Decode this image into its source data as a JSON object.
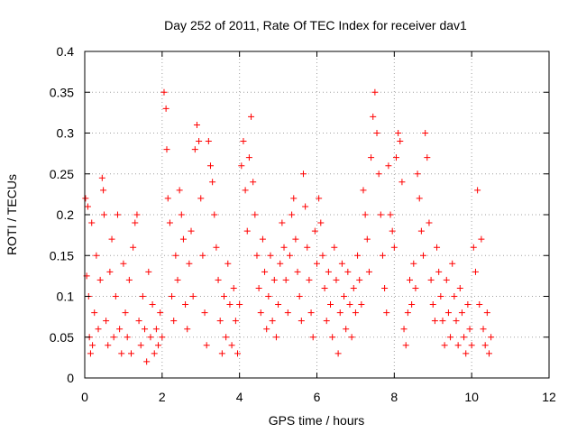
{
  "chart_data": {
    "type": "scatter",
    "title": "Day 252 of 2011, Rate Of TEC Index for receiver dav1",
    "xlabel": "GPS time / hours",
    "ylabel": "ROTI / TECUs",
    "xlim": [
      0,
      12
    ],
    "ylim": [
      0,
      0.4
    ],
    "xticks": [
      "0",
      "2",
      "4",
      "6",
      "8",
      "10",
      "12"
    ],
    "yticks": [
      "0",
      "0.05",
      "0.1",
      "0.15",
      "0.2",
      "0.25",
      "0.3",
      "0.35",
      "0.4"
    ],
    "grid": true,
    "marker": "+",
    "color": "#ff0000",
    "points": [
      [
        0.02,
        0.22
      ],
      [
        0.05,
        0.125
      ],
      [
        0.08,
        0.21
      ],
      [
        0.1,
        0.1
      ],
      [
        0.12,
        0.05
      ],
      [
        0.15,
        0.03
      ],
      [
        0.18,
        0.19
      ],
      [
        0.2,
        0.04
      ],
      [
        0.25,
        0.08
      ],
      [
        0.3,
        0.15
      ],
      [
        0.35,
        0.06
      ],
      [
        0.4,
        0.12
      ],
      [
        0.45,
        0.245
      ],
      [
        0.48,
        0.23
      ],
      [
        0.5,
        0.2
      ],
      [
        0.55,
        0.07
      ],
      [
        0.6,
        0.04
      ],
      [
        0.65,
        0.13
      ],
      [
        0.7,
        0.17
      ],
      [
        0.75,
        0.05
      ],
      [
        0.8,
        0.1
      ],
      [
        0.85,
        0.2
      ],
      [
        0.9,
        0.06
      ],
      [
        0.95,
        0.03
      ],
      [
        1.0,
        0.14
      ],
      [
        1.05,
        0.08
      ],
      [
        1.1,
        0.05
      ],
      [
        1.15,
        0.12
      ],
      [
        1.2,
        0.03
      ],
      [
        1.25,
        0.16
      ],
      [
        1.3,
        0.19
      ],
      [
        1.35,
        0.2
      ],
      [
        1.4,
        0.07
      ],
      [
        1.45,
        0.04
      ],
      [
        1.5,
        0.1
      ],
      [
        1.55,
        0.06
      ],
      [
        1.6,
        0.02
      ],
      [
        1.65,
        0.13
      ],
      [
        1.7,
        0.05
      ],
      [
        1.75,
        0.09
      ],
      [
        1.8,
        0.03
      ],
      [
        1.85,
        0.06
      ],
      [
        1.9,
        0.04
      ],
      [
        1.95,
        0.08
      ],
      [
        2.0,
        0.05
      ],
      [
        2.05,
        0.35
      ],
      [
        2.1,
        0.33
      ],
      [
        2.12,
        0.28
      ],
      [
        2.15,
        0.22
      ],
      [
        2.2,
        0.19
      ],
      [
        2.25,
        0.1
      ],
      [
        2.3,
        0.07
      ],
      [
        2.35,
        0.15
      ],
      [
        2.4,
        0.12
      ],
      [
        2.45,
        0.23
      ],
      [
        2.5,
        0.2
      ],
      [
        2.55,
        0.17
      ],
      [
        2.6,
        0.09
      ],
      [
        2.65,
        0.06
      ],
      [
        2.7,
        0.14
      ],
      [
        2.75,
        0.18
      ],
      [
        2.8,
        0.1
      ],
      [
        2.85,
        0.28
      ],
      [
        2.9,
        0.31
      ],
      [
        2.95,
        0.29
      ],
      [
        3.0,
        0.22
      ],
      [
        3.05,
        0.15
      ],
      [
        3.1,
        0.08
      ],
      [
        3.15,
        0.04
      ],
      [
        3.2,
        0.29
      ],
      [
        3.25,
        0.26
      ],
      [
        3.3,
        0.24
      ],
      [
        3.35,
        0.2
      ],
      [
        3.4,
        0.16
      ],
      [
        3.45,
        0.12
      ],
      [
        3.5,
        0.07
      ],
      [
        3.55,
        0.03
      ],
      [
        3.6,
        0.1
      ],
      [
        3.65,
        0.05
      ],
      [
        3.7,
        0.14
      ],
      [
        3.75,
        0.09
      ],
      [
        3.8,
        0.04
      ],
      [
        3.85,
        0.11
      ],
      [
        3.9,
        0.07
      ],
      [
        3.95,
        0.03
      ],
      [
        4.0,
        0.09
      ],
      [
        4.05,
        0.26
      ],
      [
        4.1,
        0.29
      ],
      [
        4.15,
        0.23
      ],
      [
        4.2,
        0.18
      ],
      [
        4.25,
        0.27
      ],
      [
        4.3,
        0.32
      ],
      [
        4.35,
        0.24
      ],
      [
        4.4,
        0.2
      ],
      [
        4.45,
        0.15
      ],
      [
        4.5,
        0.11
      ],
      [
        4.55,
        0.08
      ],
      [
        4.6,
        0.17
      ],
      [
        4.65,
        0.13
      ],
      [
        4.7,
        0.06
      ],
      [
        4.75,
        0.1
      ],
      [
        4.8,
        0.15
      ],
      [
        4.85,
        0.07
      ],
      [
        4.9,
        0.12
      ],
      [
        4.95,
        0.05
      ],
      [
        5.0,
        0.09
      ],
      [
        5.05,
        0.14
      ],
      [
        5.1,
        0.19
      ],
      [
        5.15,
        0.16
      ],
      [
        5.2,
        0.12
      ],
      [
        5.25,
        0.08
      ],
      [
        5.3,
        0.15
      ],
      [
        5.35,
        0.2
      ],
      [
        5.4,
        0.22
      ],
      [
        5.45,
        0.17
      ],
      [
        5.5,
        0.13
      ],
      [
        5.55,
        0.1
      ],
      [
        5.6,
        0.07
      ],
      [
        5.65,
        0.25
      ],
      [
        5.7,
        0.21
      ],
      [
        5.75,
        0.16
      ],
      [
        5.8,
        0.12
      ],
      [
        5.85,
        0.08
      ],
      [
        5.9,
        0.05
      ],
      [
        5.95,
        0.18
      ],
      [
        6.0,
        0.14
      ],
      [
        6.05,
        0.22
      ],
      [
        6.1,
        0.19
      ],
      [
        6.15,
        0.15
      ],
      [
        6.2,
        0.11
      ],
      [
        6.25,
        0.07
      ],
      [
        6.3,
        0.13
      ],
      [
        6.35,
        0.09
      ],
      [
        6.4,
        0.05
      ],
      [
        6.45,
        0.16
      ],
      [
        6.5,
        0.12
      ],
      [
        6.55,
        0.03
      ],
      [
        6.6,
        0.08
      ],
      [
        6.65,
        0.14
      ],
      [
        6.7,
        0.1
      ],
      [
        6.75,
        0.06
      ],
      [
        6.8,
        0.13
      ],
      [
        6.85,
        0.09
      ],
      [
        6.9,
        0.05
      ],
      [
        6.95,
        0.11
      ],
      [
        7.0,
        0.08
      ],
      [
        7.05,
        0.15
      ],
      [
        7.1,
        0.12
      ],
      [
        7.15,
        0.09
      ],
      [
        7.2,
        0.23
      ],
      [
        7.25,
        0.2
      ],
      [
        7.3,
        0.17
      ],
      [
        7.35,
        0.13
      ],
      [
        7.4,
        0.27
      ],
      [
        7.45,
        0.32
      ],
      [
        7.5,
        0.35
      ],
      [
        7.55,
        0.3
      ],
      [
        7.6,
        0.25
      ],
      [
        7.65,
        0.2
      ],
      [
        7.7,
        0.15
      ],
      [
        7.75,
        0.11
      ],
      [
        7.8,
        0.08
      ],
      [
        7.85,
        0.26
      ],
      [
        7.9,
        0.2
      ],
      [
        7.95,
        0.18
      ],
      [
        8.0,
        0.16
      ],
      [
        8.05,
        0.27
      ],
      [
        8.1,
        0.3
      ],
      [
        8.15,
        0.29
      ],
      [
        8.2,
        0.24
      ],
      [
        8.25,
        0.06
      ],
      [
        8.3,
        0.04
      ],
      [
        8.35,
        0.08
      ],
      [
        8.4,
        0.12
      ],
      [
        8.45,
        0.09
      ],
      [
        8.5,
        0.14
      ],
      [
        8.55,
        0.11
      ],
      [
        8.6,
        0.25
      ],
      [
        8.65,
        0.22
      ],
      [
        8.7,
        0.18
      ],
      [
        8.75,
        0.15
      ],
      [
        8.8,
        0.3
      ],
      [
        8.85,
        0.27
      ],
      [
        8.9,
        0.19
      ],
      [
        8.95,
        0.12
      ],
      [
        9.0,
        0.09
      ],
      [
        9.05,
        0.07
      ],
      [
        9.1,
        0.16
      ],
      [
        9.15,
        0.13
      ],
      [
        9.2,
        0.1
      ],
      [
        9.25,
        0.07
      ],
      [
        9.3,
        0.04
      ],
      [
        9.35,
        0.12
      ],
      [
        9.4,
        0.08
      ],
      [
        9.45,
        0.05
      ],
      [
        9.5,
        0.14
      ],
      [
        9.55,
        0.1
      ],
      [
        9.6,
        0.07
      ],
      [
        9.65,
        0.04
      ],
      [
        9.7,
        0.11
      ],
      [
        9.75,
        0.08
      ],
      [
        9.8,
        0.05
      ],
      [
        9.85,
        0.03
      ],
      [
        9.9,
        0.09
      ],
      [
        9.95,
        0.06
      ],
      [
        10.0,
        0.04
      ],
      [
        10.05,
        0.16
      ],
      [
        10.1,
        0.13
      ],
      [
        10.15,
        0.23
      ],
      [
        10.2,
        0.09
      ],
      [
        10.25,
        0.17
      ],
      [
        10.3,
        0.06
      ],
      [
        10.35,
        0.04
      ],
      [
        10.4,
        0.08
      ],
      [
        10.45,
        0.03
      ],
      [
        10.5,
        0.05
      ]
    ]
  }
}
